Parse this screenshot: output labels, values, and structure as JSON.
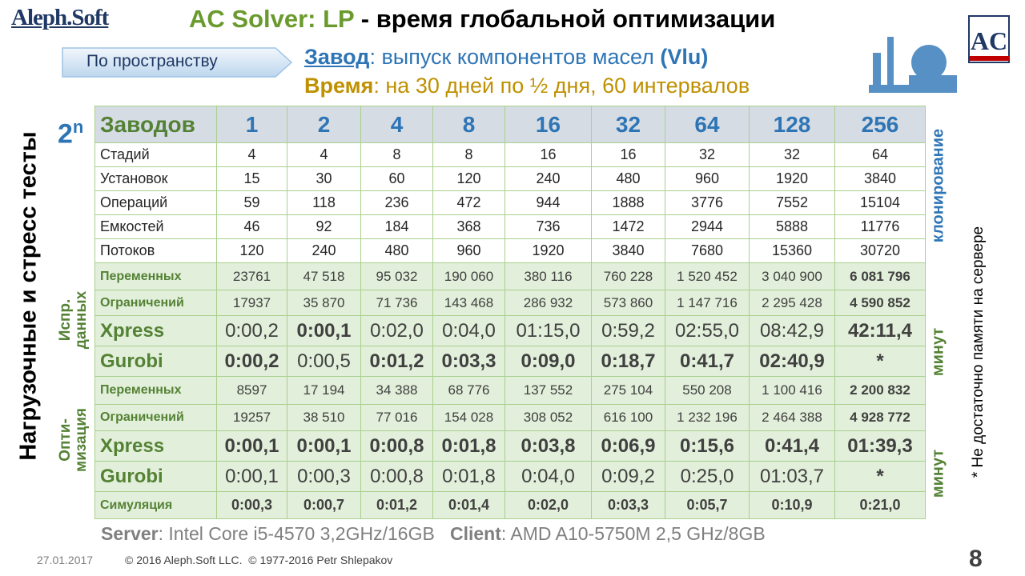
{
  "header": {
    "logo": "Aleph.Soft",
    "title": [
      "AC Solver: LP",
      " - время глобальной оптимизации"
    ],
    "button": "По пространству",
    "plant": [
      "Завод",
      ": выпуск компонентов масел ",
      "(Vlu)"
    ],
    "time": [
      "Время",
      ": на 30 дней по ½ дня, 60 интервалов"
    ]
  },
  "power": {
    "base": "2",
    "exp": "n"
  },
  "table": {
    "header": [
      "Заводов",
      "1",
      "2",
      "4",
      "8",
      "16",
      "32",
      "64",
      "128",
      "256"
    ],
    "rows": [
      {
        "label": "Стадий",
        "style": "plain",
        "bold": [],
        "cells": [
          "4",
          "4",
          "8",
          "8",
          "16",
          "16",
          "32",
          "32",
          "64"
        ]
      },
      {
        "label": "Установок",
        "style": "plain",
        "bold": [],
        "cells": [
          "15",
          "30",
          "60",
          "120",
          "240",
          "480",
          "960",
          "1920",
          "3840"
        ]
      },
      {
        "label": "Операций",
        "style": "plain",
        "bold": [],
        "cells": [
          "59",
          "118",
          "236",
          "472",
          "944",
          "1888",
          "3776",
          "7552",
          "15104"
        ]
      },
      {
        "label": "Емкостей",
        "style": "plain",
        "bold": [],
        "cells": [
          "46",
          "92",
          "184",
          "368",
          "736",
          "1472",
          "2944",
          "5888",
          "11776"
        ]
      },
      {
        "label": "Потоков",
        "style": "plain",
        "bold": [],
        "cells": [
          "120",
          "240",
          "480",
          "960",
          "1920",
          "3840",
          "7680",
          "15360",
          "30720"
        ]
      },
      {
        "label": "Переменных",
        "style": "count",
        "bold": [
          8
        ],
        "cells": [
          "23761",
          "47 518",
          "95 032",
          "190 060",
          "380 116",
          "760 228",
          "1 520 452",
          "3 040 900",
          "6 081 796"
        ]
      },
      {
        "label": "Ограничений",
        "style": "count",
        "bold": [
          8
        ],
        "cells": [
          "17937",
          "35 870",
          "71 736",
          "143 468",
          "286 932",
          "573 860",
          "1 147 716",
          "2 295 428",
          "4 590 852"
        ]
      },
      {
        "label": "Xpress",
        "style": "time",
        "bold": [
          1,
          8
        ],
        "cells": [
          "0:00,2",
          "0:00,1",
          "0:02,0",
          "0:04,0",
          "01:15,0",
          "0:59,2",
          "02:55,0",
          "08:42,9",
          "42:11,4"
        ]
      },
      {
        "label": "Gurobi",
        "style": "time",
        "bold": [
          0,
          2,
          3,
          4,
          5,
          6,
          7,
          8
        ],
        "cells": [
          "0:00,2",
          "0:00,5",
          "0:01,2",
          "0:03,3",
          "0:09,0",
          "0:18,7",
          "0:41,7",
          "02:40,9",
          "*"
        ]
      },
      {
        "label": "Переменных",
        "style": "count",
        "bold": [
          8
        ],
        "cells": [
          "8597",
          "17 194",
          "34 388",
          "68 776",
          "137 552",
          "275 104",
          "550 208",
          "1 100 416",
          "2 200 832"
        ]
      },
      {
        "label": "Ограничений",
        "style": "count",
        "bold": [
          8
        ],
        "cells": [
          "19257",
          "38 510",
          "77 016",
          "154 028",
          "308 052",
          "616 100",
          "1 232 196",
          "2 464 388",
          "4 928 772"
        ]
      },
      {
        "label": "Xpress",
        "style": "time",
        "bold": [
          0,
          1,
          2,
          3,
          4,
          5,
          6,
          7,
          8
        ],
        "cells": [
          "0:00,1",
          "0:00,1",
          "0:00,8",
          "0:01,8",
          "0:03,8",
          "0:06,9",
          "0:15,6",
          "0:41,4",
          "01:39,3"
        ]
      },
      {
        "label": "Gurobi",
        "style": "time",
        "bold": [
          8
        ],
        "cells": [
          "0:00,1",
          "0:00,3",
          "0:00,8",
          "0:01,8",
          "0:04,0",
          "0:09,2",
          "0:25,0",
          "01:03,7",
          "*"
        ]
      },
      {
        "label": "Симуляция",
        "style": "sim",
        "bold": [
          0,
          1,
          2,
          3,
          4,
          5,
          6,
          7,
          8
        ],
        "cells": [
          "0:00,3",
          "0:00,7",
          "0:01,2",
          "0:01,4",
          "0:02,0",
          "0:03,3",
          "0:05,7",
          "0:10,9",
          "0:21,0"
        ]
      }
    ]
  },
  "side": {
    "main": "Нагрузочные и стресс тесты",
    "groups": [
      [
        "Испр.",
        "данных"
      ],
      [
        "Опти-",
        "мизация"
      ]
    ],
    "cloning": "клонирование",
    "units": [
      "минут",
      "минут"
    ],
    "note": "* Не достаточно памяти на сервере"
  },
  "config": {
    "server_label": "Server",
    "server": ": Intel Core i5-4570 3,2GHz/16GB",
    "client_label": "Client",
    "client": ": AMD A10-5750M 2,5 GHz/8GB"
  },
  "footer": {
    "date": "27.01.2017",
    "copyright": "© 2016 Aleph.Soft LLC.  © 1977-2016 Petr Shlepakov",
    "page": "8"
  }
}
